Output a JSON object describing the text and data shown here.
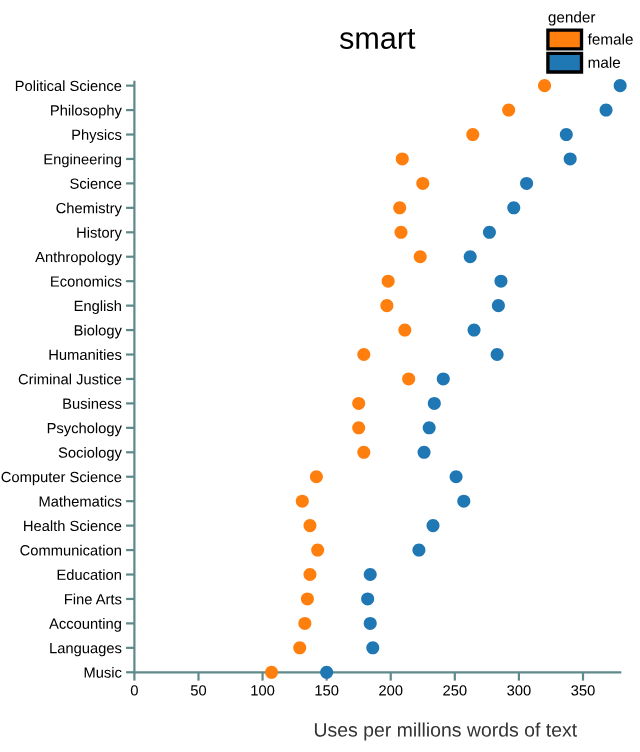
{
  "chart_data": {
    "type": "scatter",
    "title": "smart",
    "xlabel": "Uses per millions words of text",
    "legend_title": "gender",
    "legend": "top right",
    "grid": false,
    "marker": "circle",
    "orientation": "horizontal",
    "categories": [
      "Political Science",
      "Philosophy",
      "Physics",
      "Engineering",
      "Science",
      "Chemistry",
      "History",
      "Anthropology",
      "Economics",
      "English",
      "Biology",
      "Humanities",
      "Criminal Justice",
      "Business",
      "Psychology",
      "Sociology",
      "Computer Science",
      "Mathematics",
      "Health Science",
      "Communication",
      "Education",
      "Fine Arts",
      "Accounting",
      "Languages",
      "Music"
    ],
    "series": [
      {
        "name": "female",
        "color": "#ff7f0e",
        "values": [
          320,
          292,
          264,
          209,
          225,
          207,
          208,
          223,
          198,
          197,
          211,
          179,
          214,
          175,
          175,
          179,
          142,
          131,
          137,
          143,
          137,
          135,
          133,
          129,
          107
        ]
      },
      {
        "name": "male",
        "color": "#1f77b4",
        "values": [
          379,
          368,
          337,
          340,
          306,
          296,
          277,
          262,
          286,
          284,
          265,
          283,
          241,
          234,
          230,
          226,
          251,
          257,
          233,
          222,
          184,
          182,
          184,
          186,
          150
        ]
      }
    ],
    "xlim": [
      0,
      379
    ],
    "xticks": [
      0,
      50,
      100,
      150,
      200,
      250,
      300,
      350
    ]
  }
}
